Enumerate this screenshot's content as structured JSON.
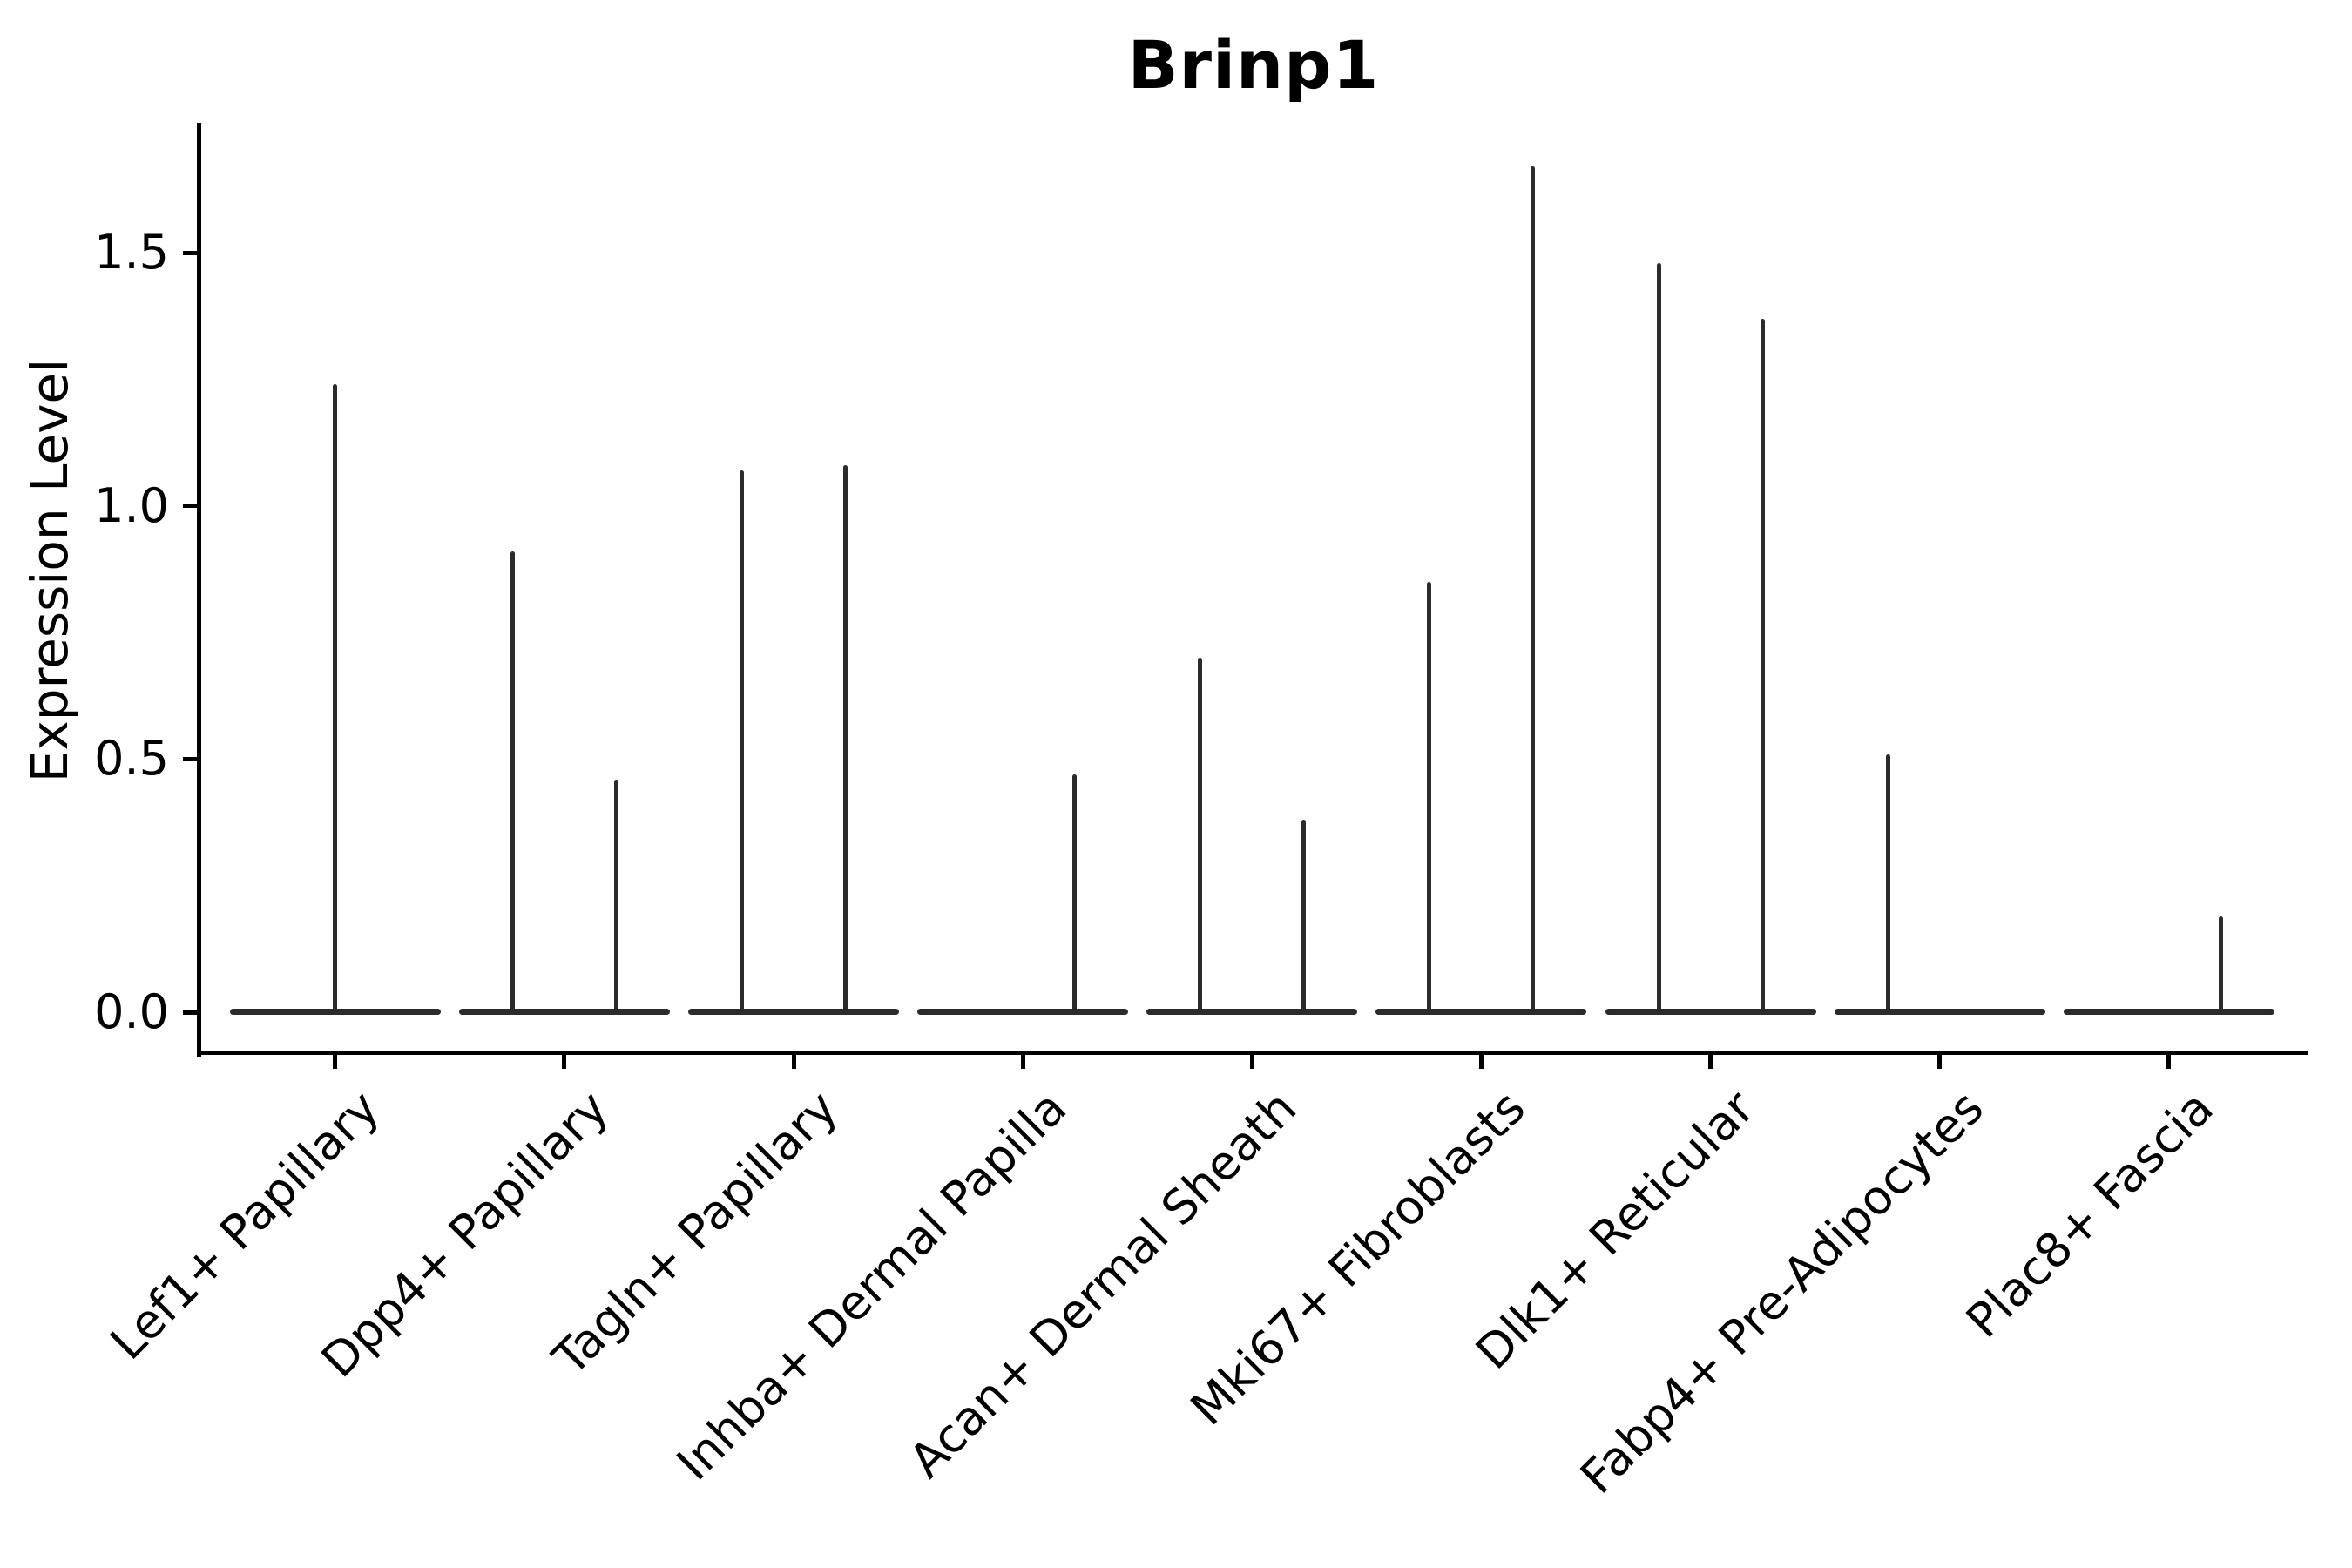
{
  "title": "Brinp1",
  "colors": {
    "background": "#ffffff",
    "axis": "#000000",
    "text": "#000000",
    "violin_line": "#2b2b2b"
  },
  "chart_data": {
    "type": "violin",
    "title": "Brinp1",
    "xlabel": "",
    "ylabel": "Expression Level",
    "ylim": [
      0,
      1.76
    ],
    "ytick_labels": [
      "0.0",
      "0.5",
      "1.0",
      "1.5"
    ],
    "ytick_values": [
      0.0,
      0.5,
      1.0,
      1.5
    ],
    "grid": false,
    "legend": "none",
    "description": "Needle-thin violins: expression is 0 for nearly all cells (flat baseline at 0 per group) with narrow spikes up to the max expressed value. Several clusters show two sub-violin spikes placed left/right of the category center.",
    "baseline_value": 0.0,
    "categories": [
      {
        "label": "Lef1+ Papillary",
        "violins": [
          {
            "side": "center",
            "max": 1.24
          }
        ]
      },
      {
        "label": "Dpp4+ Papillary",
        "violins": [
          {
            "side": "left",
            "max": 0.91
          },
          {
            "side": "right",
            "max": 0.46
          }
        ]
      },
      {
        "label": "Tagln+ Papillary",
        "violins": [
          {
            "side": "left",
            "max": 1.07
          },
          {
            "side": "right",
            "max": 1.08
          }
        ]
      },
      {
        "label": "Inhba+ Dermal Papilla",
        "violins": [
          {
            "side": "right",
            "max": 0.47
          }
        ]
      },
      {
        "label": "Acan+ Dermal Sheath",
        "violins": [
          {
            "side": "left",
            "max": 0.7
          },
          {
            "side": "right",
            "max": 0.38
          }
        ]
      },
      {
        "label": "Mki67+ Fibroblasts",
        "violins": [
          {
            "side": "left",
            "max": 0.85
          },
          {
            "side": "right",
            "max": 1.67
          }
        ]
      },
      {
        "label": "Dlk1+ Reticular",
        "violins": [
          {
            "side": "left",
            "max": 1.48
          },
          {
            "side": "right",
            "max": 1.37
          }
        ]
      },
      {
        "label": "Fabp4+ Pre-Adipocytes",
        "violins": [
          {
            "side": "left",
            "max": 0.51
          }
        ]
      },
      {
        "label": "Plac8+ Fascia",
        "violins": [
          {
            "side": "right",
            "max": 0.19
          }
        ]
      }
    ]
  }
}
